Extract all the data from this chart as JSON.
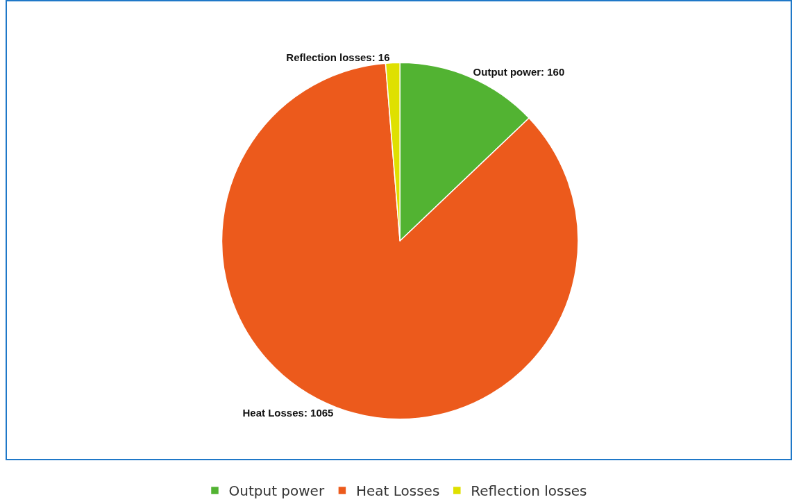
{
  "chart_data": {
    "type": "pie",
    "categories": [
      "Output power",
      "Heat Losses",
      "Reflection losses"
    ],
    "values": [
      160,
      1065,
      16
    ],
    "value_labels": [
      "Output power: 160",
      "Heat Losses: 1065",
      "Reflection losses: 16"
    ],
    "colors": [
      "#52b332",
      "#ec5a1c",
      "#dfe000"
    ],
    "legend": "bottom"
  }
}
